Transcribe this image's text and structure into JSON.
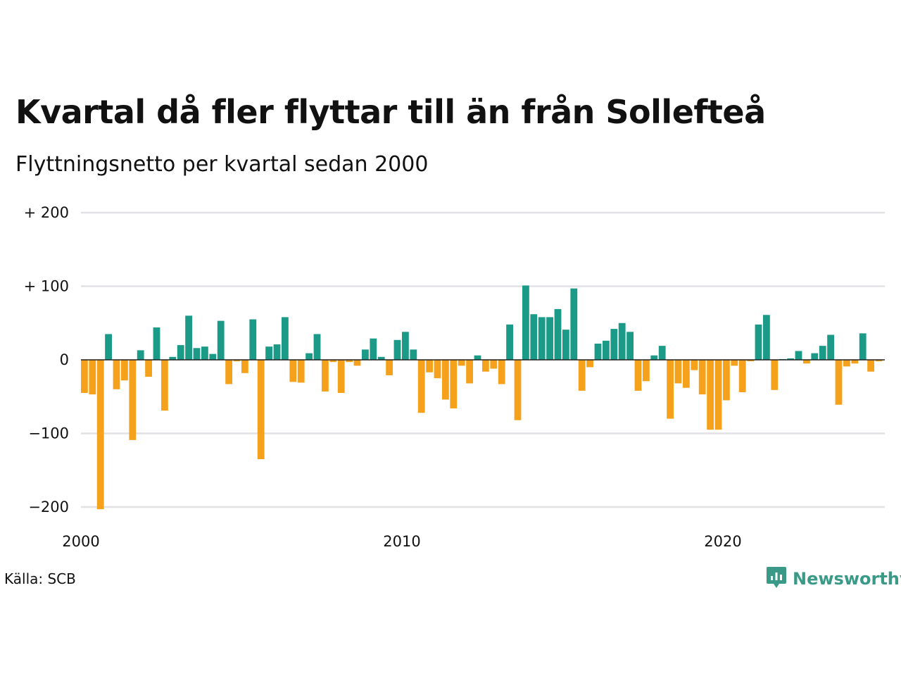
{
  "title": "Kvartal då fler flyttar till än från Sollefteå",
  "subtitle": "Flyttningsnetto per kvartal sedan 2000",
  "source": "Källa: SCB",
  "brand": {
    "name": "Newsworthy",
    "icon": "newsworthy-logo-icon",
    "color": "#3a9a87"
  },
  "colors": {
    "positive": "#1a9a87",
    "negative": "#f5a11c",
    "grid": "#e2e2e6",
    "zero_line": "#222222"
  },
  "chart_data": {
    "type": "bar",
    "title": "Kvartal då fler flyttar till än från Sollefteå",
    "subtitle": "Flyttningsnetto per kvartal sedan 2000",
    "xlabel": "",
    "ylabel": "",
    "ylim": [
      -200,
      200
    ],
    "yticks": [
      {
        "value": 200,
        "label": "+ 200"
      },
      {
        "value": 100,
        "label": "+ 100"
      },
      {
        "value": 0,
        "label": "0"
      },
      {
        "value": -100,
        "label": "−100"
      },
      {
        "value": -200,
        "label": "−200"
      }
    ],
    "xticks": [
      {
        "value": 2000,
        "label": "2000"
      },
      {
        "value": 2010,
        "label": "2010"
      },
      {
        "value": 2020,
        "label": "2020"
      }
    ],
    "grid": true,
    "legend": "none",
    "start": {
      "year": 2000,
      "quarter": 1
    },
    "values": [
      -45,
      -47,
      -203,
      35,
      -40,
      -28,
      -109,
      13,
      -23,
      44,
      -69,
      4,
      20,
      60,
      16,
      18,
      8,
      53,
      -33,
      -2,
      -18,
      55,
      -135,
      18,
      21,
      58,
      -30,
      -31,
      9,
      35,
      -43,
      -3,
      -45,
      -3,
      -8,
      14,
      29,
      4,
      -21,
      27,
      38,
      14,
      -72,
      -17,
      -25,
      -54,
      -66,
      -8,
      -32,
      6,
      -16,
      -12,
      -33,
      48,
      -82,
      101,
      62,
      58,
      58,
      69,
      41,
      97,
      -42,
      -10,
      22,
      26,
      42,
      50,
      38,
      -42,
      -29,
      6,
      19,
      -80,
      -32,
      -38,
      -14,
      -47,
      -95,
      -95,
      -55,
      -8,
      -44,
      -2,
      48,
      61,
      -41,
      1,
      2,
      12,
      -5,
      9,
      19,
      34,
      -61,
      -9,
      -5,
      36,
      -16,
      -2
    ]
  }
}
